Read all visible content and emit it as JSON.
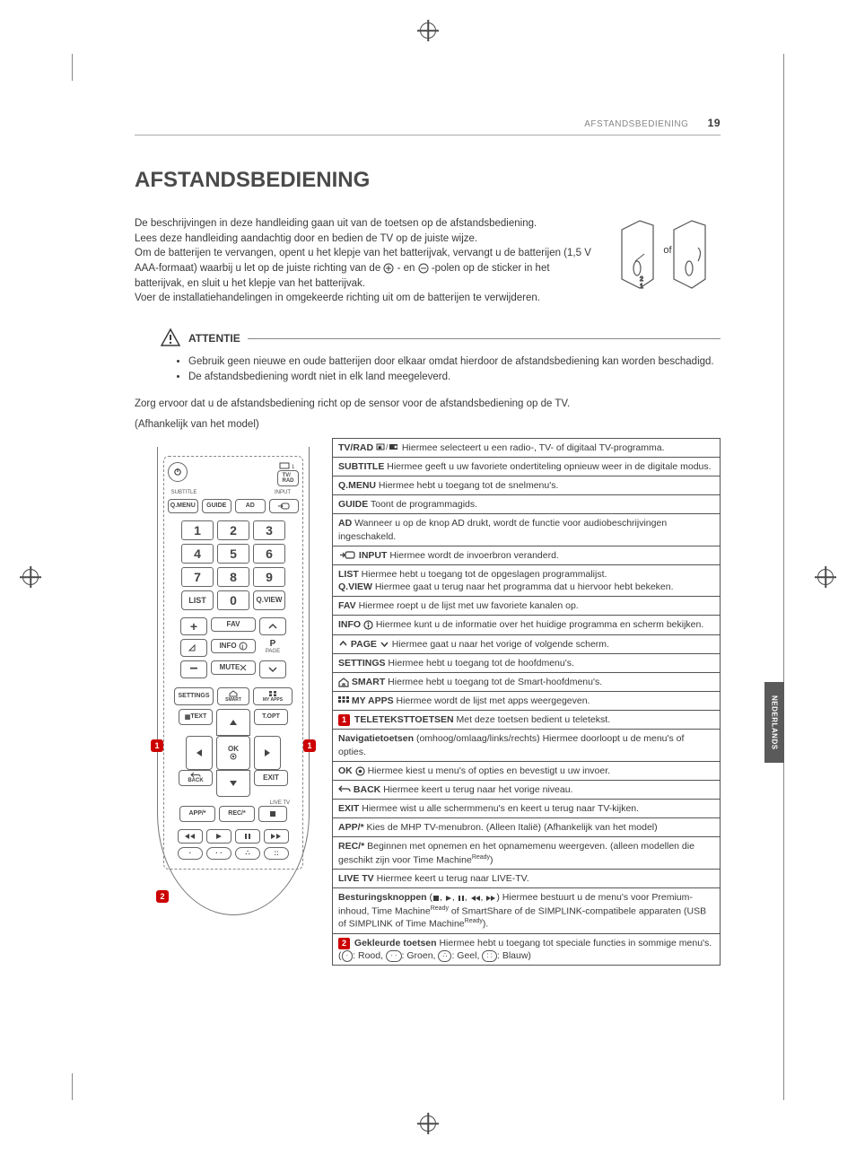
{
  "running_head": "AFSTANDSBEDIENING",
  "page_number": "19",
  "side_tab": "NEDERLANDS",
  "title": "AFSTANDSBEDIENING",
  "intro": {
    "p1": "De beschrijvingen in deze handleiding gaan uit van de toetsen op de afstandsbediening.",
    "p2": "Lees deze handleiding aandachtig door en bedien de TV op de juiste wijze.",
    "p3_a": "Om de batterijen te vervangen, opent u het klepje van het batterijvak, vervangt u de batterijen (1,5 V AAA-formaat) waarbij u let op de juiste richting van de ",
    "p3_b": "- en ",
    "p3_c": "-polen op de sticker in het batterijvak, en sluit u het klepje van het batterijvak.",
    "p4": "Voer de installatiehandelingen in omgekeerde richting uit om de batterijen te verwijderen."
  },
  "battery_of": "of",
  "attentie": {
    "label": "ATTENTIE",
    "items": [
      "Gebruik geen nieuwe en oude batterijen door elkaar omdat hierdoor de afstandsbediening kan worden beschadigd.",
      "De afstandsbediening wordt niet in elk land meegeleverd."
    ]
  },
  "note2_a": "Zorg ervoor dat u de afstandsbediening richt op de sensor voor de afstandsbediening op de TV.",
  "note2_b": "(Afhankelijk van het model)",
  "remote": {
    "subtitle": "SUBTITLE",
    "input": "INPUT",
    "tvrad": "TV/\nRAD",
    "qmenu": "Q.MENU",
    "guide": "GUIDE",
    "ad": "AD",
    "nums": [
      "1",
      "2",
      "3",
      "4",
      "5",
      "6",
      "7",
      "8",
      "9",
      "0"
    ],
    "list": "LIST",
    "qview": "Q.VIEW",
    "fav": "FAV",
    "info": "INFO",
    "page": "PAGE",
    "p": "P",
    "mute": "MUTE",
    "settings": "SETTINGS",
    "smart": "SMART",
    "myapps": "MY APPS",
    "text": "TEXT",
    "topt": "T.OPT",
    "ok": "OK",
    "back": "BACK",
    "exit": "EXIT",
    "livetv": "LIVE TV",
    "app": "APP/*",
    "rec": "REC/*"
  },
  "callouts": {
    "one": "1",
    "two": "2"
  },
  "desc": [
    {
      "b": "TV/RAD",
      "icon": "tvrad",
      "t": " Hiermee selecteert u een radio-, TV- of digitaal TV-programma."
    },
    {
      "b": "SUBTITLE",
      "t": " Hiermee geeft u uw favoriete ondertiteling opnieuw weer in de digitale modus."
    },
    {
      "b": "Q.MENU",
      "t": " Hiermee hebt u toegang tot de snelmenu's."
    },
    {
      "b": "GUIDE",
      "t": " Toont de programmagids."
    },
    {
      "b": "AD",
      "t": " Wanneer u op de knop AD drukt, wordt de functie voor audiobeschrijvingen ingeschakeld."
    },
    {
      "icon": "input",
      "b": "INPUT",
      "t": " Hiermee wordt de invoerbron veranderd."
    },
    {
      "multi": [
        {
          "b": "LIST",
          "t": " Hiermee hebt u toegang tot de opgeslagen programmalijst."
        },
        {
          "b": "Q.VIEW",
          "t": " Hiermee gaat u terug naar het programma dat u hiervoor hebt bekeken."
        }
      ]
    },
    {
      "b": "FAV",
      "t": " Hiermee roept u de lijst met uw favoriete kanalen op."
    },
    {
      "b": "INFO",
      "icon": "info",
      "t": " Hiermee kunt u de informatie over het huidige programma en scherm bekijken."
    },
    {
      "icon": "pageupdown",
      "b": "PAGE",
      "t": " Hiermee gaat u naar het vorige of volgende scherm."
    },
    {
      "b": "SETTINGS",
      "t": " Hiermee hebt u toegang tot de hoofdmenu's."
    },
    {
      "icon": "home",
      "b": "SMART",
      "t": " Hiermee hebt u toegang tot de Smart-hoofdmenu's."
    },
    {
      "icon": "grid",
      "b": "MY APPS",
      "t": " Hiermee wordt de lijst met apps weergegeven."
    },
    {
      "badge": "1",
      "b": "TELETEKSTTOETSEN",
      "t": " Met deze toetsen bedient u teletekst."
    },
    {
      "b": "Navigatietoetsen",
      "t": " (omhoog/omlaag/links/rechts) Hiermee doorloopt u de menu's of opties."
    },
    {
      "b": "OK",
      "icon": "ok",
      "t": " Hiermee kiest u menu's of opties en bevestigt u uw invoer."
    },
    {
      "icon": "back",
      "b": "BACK",
      "t": " Hiermee keert u terug naar het vorige niveau."
    },
    {
      "b": "EXIT",
      "t": "  Hiermee wist u alle schermmenu's en keert u terug naar TV-kijken."
    },
    {
      "b": "APP/*",
      "t": " Kies de MHP TV-menubron. (Alleen Italië) (Afhankelijk van het model)"
    },
    {
      "b": "REC/*",
      "t": "  Beginnen met opnemen en het opnamemenu weergeven. (alleen modellen die geschikt zijn voor Time Machine",
      "sup": "Ready",
      "tail": ")"
    },
    {
      "b": "LIVE TV",
      "t": " Hiermee keert u terug naar LIVE-TV."
    },
    {
      "b": "Besturingsknoppen",
      "icon": "playback",
      "t_a": " Hiermee bestuurt u de menu's voor Premium-inhoud, Time Machine",
      "sup1": "Ready",
      "t_b": " of SmartShare of de SIMPLINK-compatibele apparaten (USB of SIMPLINK of Time Machine",
      "sup2": "Ready",
      "t_c": ")."
    },
    {
      "badge": "2",
      "b": "Gekleurde toetsen",
      "t": " Hiermee hebt u toegang tot speciale functies in sommige menu's. (",
      "colors": true,
      "tail": ")"
    }
  ],
  "color_labels": {
    "red": ": Rood, ",
    "green": ": Groen, ",
    "yellow": ": Geel, ",
    "blue": ": Blauw"
  },
  "colors": {
    "text": "#3a3a3a",
    "border": "#555555",
    "accent_red": "#c00000",
    "side_tab_bg": "#5a5a5a"
  }
}
